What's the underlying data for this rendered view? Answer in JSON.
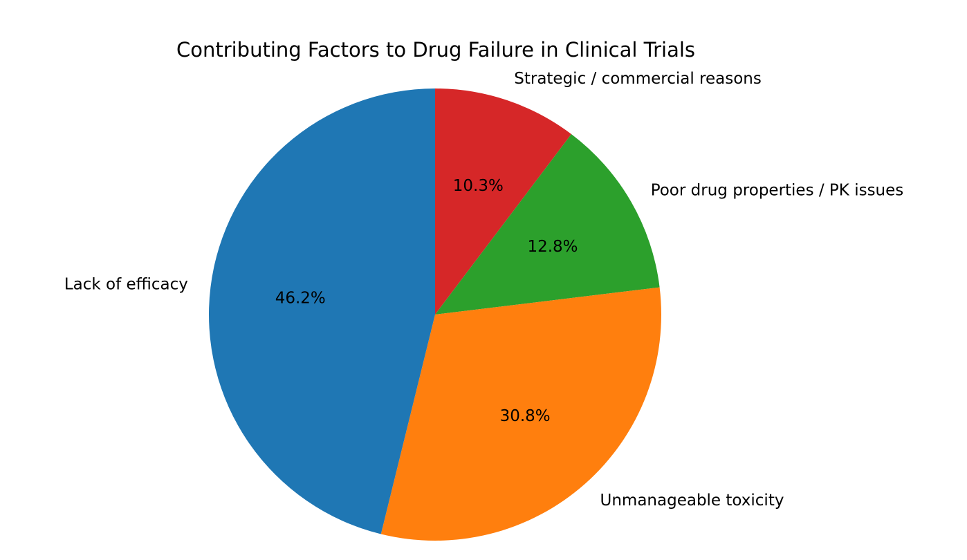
{
  "chart_data": {
    "type": "pie",
    "title": "Contributing Factors to Drug Failure in Clinical Trials",
    "start_angle_deg": 90,
    "direction": "clockwise",
    "slices": [
      {
        "label": "Strategic / commercial reasons",
        "percent": 10.3,
        "pct_label": "10.3%",
        "color": "#d62728"
      },
      {
        "label": "Poor drug properties / PK issues",
        "percent": 12.8,
        "pct_label": "12.8%",
        "color": "#2ca02c"
      },
      {
        "label": "Unmanageable toxicity",
        "percent": 30.8,
        "pct_label": "30.8%",
        "color": "#ff7f0e"
      },
      {
        "label": "Lack of efficacy",
        "percent": 46.2,
        "pct_label": "46.2%",
        "color": "#1f77b4"
      }
    ]
  }
}
